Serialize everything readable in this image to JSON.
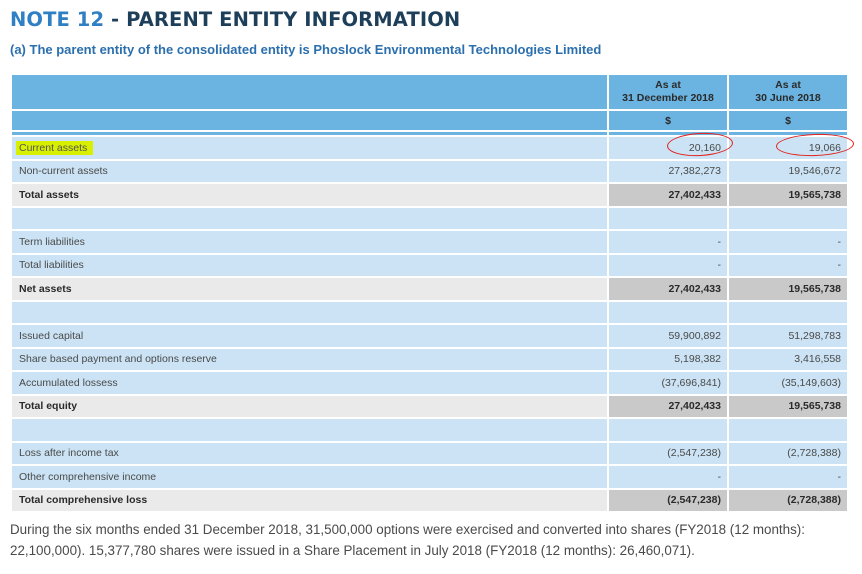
{
  "title": {
    "note_number": "NOTE 12",
    "separator": " - ",
    "heading": "PARENT ENTITY INFORMATION"
  },
  "subtitle": "(a) The parent entity of the consolidated entity is Phoslock Environmental Technologies Limited",
  "table": {
    "columns": [
      {
        "line1": "As at",
        "line2": "31 December 2018",
        "unit": "$"
      },
      {
        "line1": "As at",
        "line2": "30 June 2018",
        "unit": "$"
      }
    ],
    "rows": [
      {
        "label": "Current assets",
        "v1": "20,160",
        "v2": "19,066"
      },
      {
        "label": "Non-current assets",
        "v1": "27,382,273",
        "v2": "19,546,672"
      },
      {
        "label": "Total assets",
        "v1": "27,402,433",
        "v2": "19,565,738"
      },
      {
        "label": "Term liabilities",
        "v1": "-",
        "v2": "-"
      },
      {
        "label": "Total liabilities",
        "v1": "-",
        "v2": "-"
      },
      {
        "label": "Net assets",
        "v1": "27,402,433",
        "v2": "19,565,738"
      },
      {
        "label": "Issued capital",
        "v1": "59,900,892",
        "v2": "51,298,783"
      },
      {
        "label": "Share based payment and options reserve",
        "v1": "5,198,382",
        "v2": "3,416,558"
      },
      {
        "label": "Accumulated lossess",
        "v1": "(37,696,841)",
        "v2": "(35,149,603)"
      },
      {
        "label": "Total equity",
        "v1": "27,402,433",
        "v2": "19,565,738"
      },
      {
        "label": "Loss after income tax",
        "v1": "(2,547,238)",
        "v2": "(2,728,388)"
      },
      {
        "label": "Other comprehensive income",
        "v1": "-",
        "v2": "-"
      },
      {
        "label": "Total comprehensive loss",
        "v1": "(2,547,238)",
        "v2": "(2,728,388)"
      }
    ]
  },
  "footnote": "During the six months ended 31 December 2018, 31,500,000 options were exercised and converted into shares (FY2018 (12 months): 22,100,000). 15,377,780 shares were issued in a Share Placement in July 2018 (FY2018 (12 months): 26,460,071).",
  "colors": {
    "header_blue": "#6bb3e0",
    "row_blue": "#cbe3f4",
    "total_grey": "#c9c9c9",
    "highlight": "#d8f000",
    "annotation_red": "#e3201b",
    "title_navy": "#1e3f5a",
    "subtitle_blue": "#2b6fae"
  }
}
